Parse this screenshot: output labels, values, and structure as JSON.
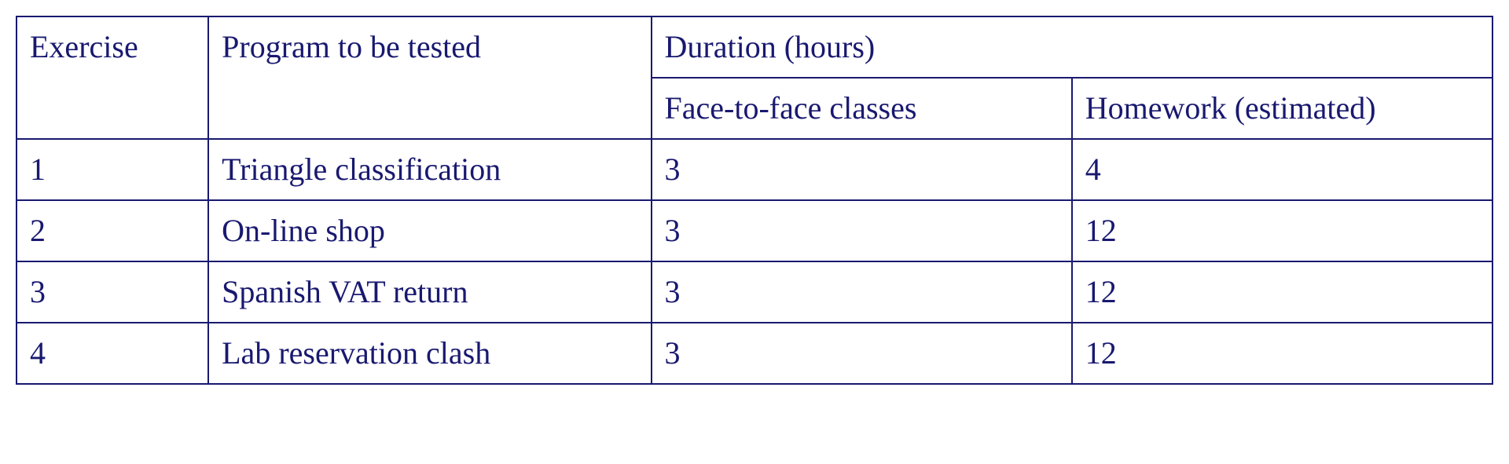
{
  "table": {
    "type": "table",
    "border_color": "#191970",
    "text_color": "#191970",
    "background_color": "#ffffff",
    "font_family": "Times New Roman",
    "font_size_pt": 30,
    "column_widths_pct": [
      13,
      30,
      28.5,
      28.5
    ],
    "headers": {
      "exercise": "Exercise",
      "program": "Program to be tested",
      "duration": "Duration (hours)",
      "face_to_face": "Face-to-face classes",
      "homework": "Homework (estimated)"
    },
    "rows": [
      {
        "exercise": "1",
        "program": "Triangle classification",
        "face_to_face": "3",
        "homework": "4"
      },
      {
        "exercise": "2",
        "program": "On-line shop",
        "face_to_face": "3",
        "homework": "12"
      },
      {
        "exercise": "3",
        "program": "Spanish VAT return",
        "face_to_face": "3",
        "homework": "12"
      },
      {
        "exercise": "4",
        "program": "Lab reservation clash",
        "face_to_face": "3",
        "homework": "12"
      }
    ]
  }
}
